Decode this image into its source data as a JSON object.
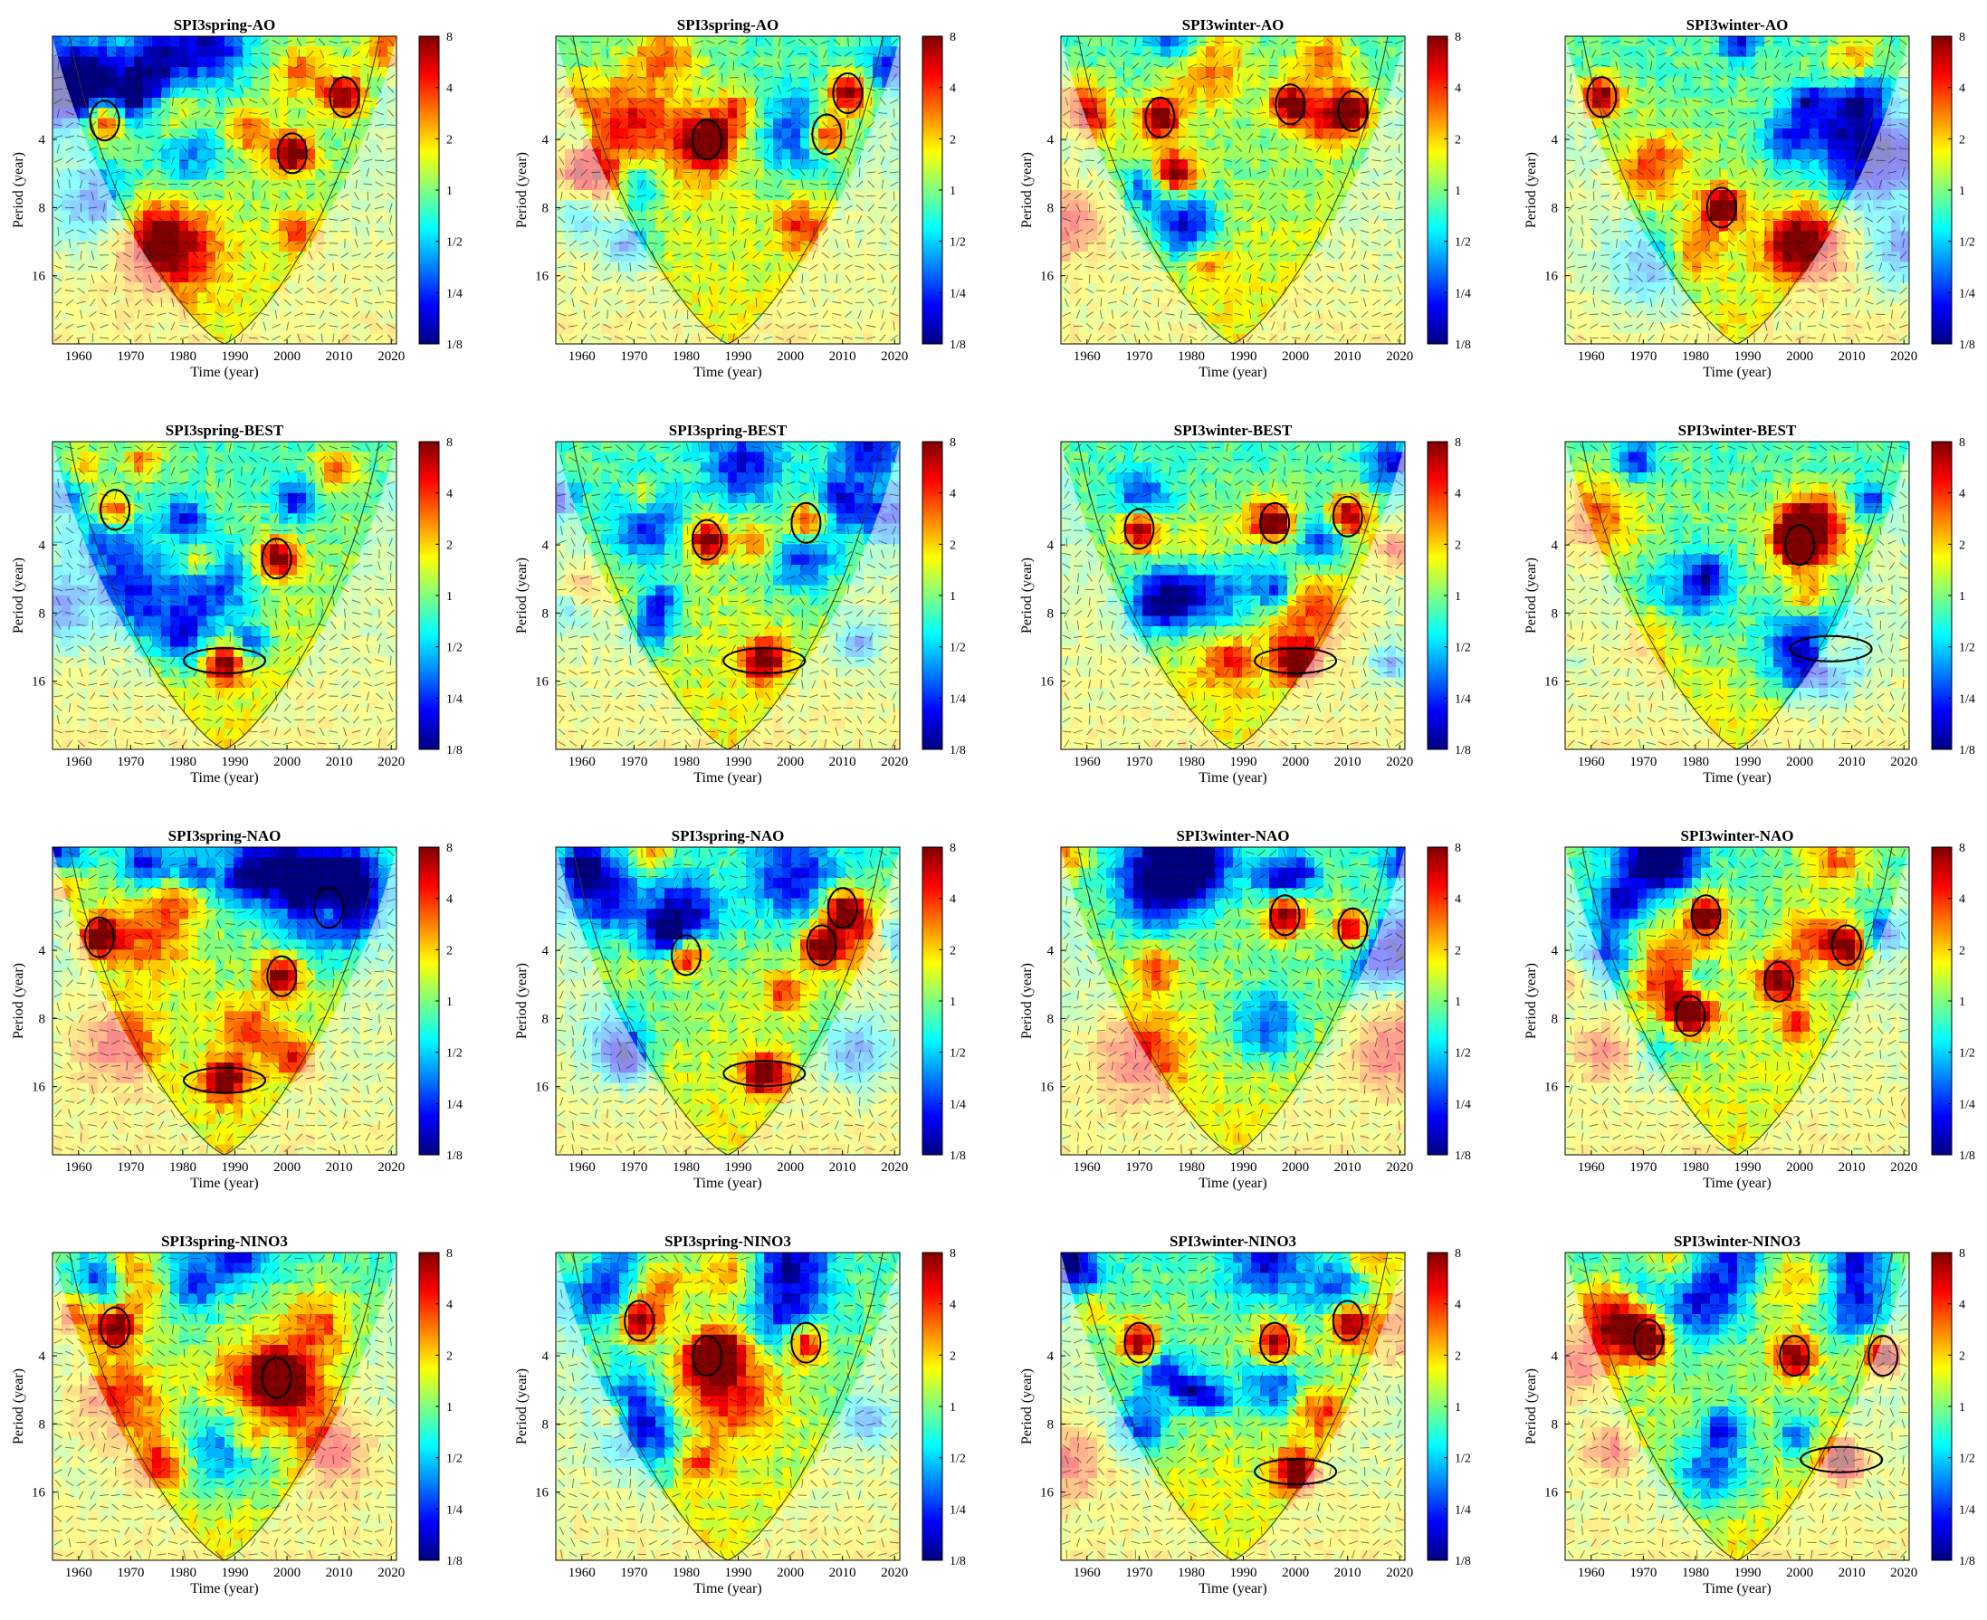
{
  "figure": {
    "layout": {
      "rows": 4,
      "cols": 4
    }
  },
  "colormap": [
    "#00007f",
    "#0000ff",
    "#0080ff",
    "#00ffff",
    "#80ff80",
    "#ffff00",
    "#ff8000",
    "#ff0000",
    "#7f0000"
  ],
  "chart_data": [
    {
      "type": "heatmap",
      "title": "SPI3spring-AO",
      "xlabel": "Time (year)",
      "ylabel": "Period (year)",
      "xlim": [
        1955,
        2021
      ],
      "x_ticks": [
        "1960",
        "1970",
        "1980",
        "1990",
        "2000",
        "2010",
        "2020"
      ],
      "y_ticks": [
        "4",
        "8",
        "16"
      ],
      "colorbar_ticks": [
        "8",
        "4",
        "2",
        "1",
        "1/2",
        "1/4",
        "1/8"
      ],
      "cone_of_influence": true,
      "significant_regions": [
        {
          "t": 1965,
          "period": 3.3
        },
        {
          "t": 2001,
          "period": 4.6
        },
        {
          "t": 2011,
          "period": 2.6
        }
      ],
      "seed": 11
    },
    {
      "type": "heatmap",
      "title": "SPI3spring-AO",
      "xlabel": "Time (year)",
      "ylabel": "Period (year)",
      "xlim": [
        1955,
        2021
      ],
      "x_ticks": [
        "1960",
        "1970",
        "1980",
        "1990",
        "2000",
        "2010",
        "2020"
      ],
      "y_ticks": [
        "4",
        "8",
        "16"
      ],
      "colorbar_ticks": [
        "8",
        "4",
        "2",
        "1",
        "1/2",
        "1/4",
        "1/8"
      ],
      "cone_of_influence": true,
      "significant_regions": [
        {
          "t": 1984,
          "period": 4
        },
        {
          "t": 2007,
          "period": 3.8
        },
        {
          "t": 2011,
          "period": 2.5
        }
      ],
      "seed": 23
    },
    {
      "type": "heatmap",
      "title": "SPI3winter-AO",
      "xlabel": "Time (year)",
      "ylabel": "Period (year)",
      "xlim": [
        1955,
        2021
      ],
      "x_ticks": [
        "1960",
        "1970",
        "1980",
        "1990",
        "2000",
        "2010",
        "2020"
      ],
      "y_ticks": [
        "4",
        "8",
        "16"
      ],
      "colorbar_ticks": [
        "8",
        "4",
        "2",
        "1",
        "1/2",
        "1/4",
        "1/8"
      ],
      "cone_of_influence": true,
      "significant_regions": [
        {
          "t": 1974,
          "period": 3.2
        },
        {
          "t": 1999,
          "period": 2.8
        },
        {
          "t": 2011,
          "period": 3
        }
      ],
      "seed": 37
    },
    {
      "type": "heatmap",
      "title": "SPI3winter-AO",
      "xlabel": "Time (year)",
      "ylabel": "Period (year)",
      "xlim": [
        1955,
        2021
      ],
      "x_ticks": [
        "1960",
        "1970",
        "1980",
        "1990",
        "2000",
        "2010",
        "2020"
      ],
      "y_ticks": [
        "4",
        "8",
        "16"
      ],
      "colorbar_ticks": [
        "8",
        "4",
        "2",
        "1",
        "1/2",
        "1/4",
        "1/8"
      ],
      "cone_of_influence": true,
      "significant_regions": [
        {
          "t": 1962,
          "period": 2.6
        },
        {
          "t": 1985,
          "period": 8
        }
      ],
      "seed": 41
    },
    {
      "type": "heatmap",
      "title": "SPI3spring-BEST",
      "xlabel": "Time (year)",
      "ylabel": "Period (year)",
      "xlim": [
        1955,
        2021
      ],
      "x_ticks": [
        "1960",
        "1970",
        "1980",
        "1990",
        "2000",
        "2010",
        "2020"
      ],
      "y_ticks": [
        "4",
        "8",
        "16"
      ],
      "colorbar_ticks": [
        "8",
        "4",
        "2",
        "1",
        "1/2",
        "1/4",
        "1/8"
      ],
      "cone_of_influence": true,
      "significant_regions": [
        {
          "t": 1967,
          "period": 2.8
        },
        {
          "t": 1998,
          "period": 4.6
        },
        {
          "t": 1988,
          "period": 13
        }
      ],
      "seed": 53
    },
    {
      "type": "heatmap",
      "title": "SPI3spring-BEST",
      "xlabel": "Time (year)",
      "ylabel": "Period (year)",
      "xlim": [
        1955,
        2021
      ],
      "x_ticks": [
        "1960",
        "1970",
        "1980",
        "1990",
        "2000",
        "2010",
        "2020"
      ],
      "y_ticks": [
        "4",
        "8",
        "16"
      ],
      "colorbar_ticks": [
        "8",
        "4",
        "2",
        "1",
        "1/2",
        "1/4",
        "1/8"
      ],
      "cone_of_influence": true,
      "significant_regions": [
        {
          "t": 1984,
          "period": 3.8
        },
        {
          "t": 2003,
          "period": 3.2
        },
        {
          "t": 1995,
          "period": 13
        }
      ],
      "seed": 67
    },
    {
      "type": "heatmap",
      "title": "SPI3winter-BEST",
      "xlabel": "Time (year)",
      "ylabel": "Period (year)",
      "xlim": [
        1955,
        2021
      ],
      "x_ticks": [
        "1960",
        "1970",
        "1980",
        "1990",
        "2000",
        "2010",
        "2020"
      ],
      "y_ticks": [
        "4",
        "8",
        "16"
      ],
      "colorbar_ticks": [
        "8",
        "4",
        "2",
        "1",
        "1/2",
        "1/4",
        "1/8"
      ],
      "cone_of_influence": true,
      "significant_regions": [
        {
          "t": 1970,
          "period": 3.4
        },
        {
          "t": 1996,
          "period": 3.2
        },
        {
          "t": 2010,
          "period": 3
        },
        {
          "t": 2000,
          "period": 13
        }
      ],
      "seed": 71
    },
    {
      "type": "heatmap",
      "title": "SPI3winter-BEST",
      "xlabel": "Time (year)",
      "ylabel": "Period (year)",
      "xlim": [
        1955,
        2021
      ],
      "x_ticks": [
        "1960",
        "1970",
        "1980",
        "1990",
        "2000",
        "2010",
        "2020"
      ],
      "y_ticks": [
        "4",
        "8",
        "16"
      ],
      "colorbar_ticks": [
        "8",
        "4",
        "2",
        "1",
        "1/2",
        "1/4",
        "1/8"
      ],
      "cone_of_influence": true,
      "significant_regions": [
        {
          "t": 2000,
          "period": 4
        },
        {
          "t": 2006,
          "period": 11.5
        }
      ],
      "seed": 83
    },
    {
      "type": "heatmap",
      "title": "SPI3spring-NAO",
      "xlabel": "Time (year)",
      "ylabel": "Period (year)",
      "xlim": [
        1955,
        2021
      ],
      "x_ticks": [
        "1960",
        "1970",
        "1980",
        "1990",
        "2000",
        "2010",
        "2020"
      ],
      "y_ticks": [
        "4",
        "8",
        "16"
      ],
      "colorbar_ticks": [
        "8",
        "4",
        "2",
        "1",
        "1/2",
        "1/4",
        "1/8"
      ],
      "cone_of_influence": true,
      "significant_regions": [
        {
          "t": 1964,
          "period": 3.5
        },
        {
          "t": 1999,
          "period": 5.2
        },
        {
          "t": 2008,
          "period": 2.6
        },
        {
          "t": 1988,
          "period": 15
        }
      ],
      "seed": 97
    },
    {
      "type": "heatmap",
      "title": "SPI3spring-NAO",
      "xlabel": "Time (year)",
      "ylabel": "Period (year)",
      "xlim": [
        1955,
        2021
      ],
      "x_ticks": [
        "1960",
        "1970",
        "1980",
        "1990",
        "2000",
        "2010",
        "2020"
      ],
      "y_ticks": [
        "4",
        "8",
        "16"
      ],
      "colorbar_ticks": [
        "8",
        "4",
        "2",
        "1",
        "1/2",
        "1/4",
        "1/8"
      ],
      "cone_of_influence": true,
      "significant_regions": [
        {
          "t": 1980,
          "period": 4.2
        },
        {
          "t": 2006,
          "period": 3.8
        },
        {
          "t": 2010,
          "period": 2.6
        },
        {
          "t": 1995,
          "period": 14
        }
      ],
      "seed": 101
    },
    {
      "type": "heatmap",
      "title": "SPI3winter-NAO",
      "xlabel": "Time (year)",
      "ylabel": "Period (year)",
      "xlim": [
        1955,
        2021
      ],
      "x_ticks": [
        "1960",
        "1970",
        "1980",
        "1990",
        "2000",
        "2010",
        "2020"
      ],
      "y_ticks": [
        "4",
        "8",
        "16"
      ],
      "colorbar_ticks": [
        "8",
        "4",
        "2",
        "1",
        "1/2",
        "1/4",
        "1/8"
      ],
      "cone_of_influence": true,
      "significant_regions": [
        {
          "t": 1998,
          "period": 2.8
        },
        {
          "t": 2011,
          "period": 3.2
        }
      ],
      "seed": 113
    },
    {
      "type": "heatmap",
      "title": "SPI3winter-NAO",
      "xlabel": "Time (year)",
      "ylabel": "Period (year)",
      "xlim": [
        1955,
        2021
      ],
      "x_ticks": [
        "1960",
        "1970",
        "1980",
        "1990",
        "2000",
        "2010",
        "2020"
      ],
      "y_ticks": [
        "4",
        "8",
        "16"
      ],
      "colorbar_ticks": [
        "8",
        "4",
        "2",
        "1",
        "1/2",
        "1/4",
        "1/8"
      ],
      "cone_of_influence": true,
      "significant_regions": [
        {
          "t": 1982,
          "period": 2.8
        },
        {
          "t": 1979,
          "period": 7.8
        },
        {
          "t": 1996,
          "period": 5.5
        },
        {
          "t": 2009,
          "period": 3.8
        }
      ],
      "seed": 127
    },
    {
      "type": "heatmap",
      "title": "SPI3spring-NINO3",
      "xlabel": "Time (year)",
      "ylabel": "Period (year)",
      "xlim": [
        1955,
        2021
      ],
      "x_ticks": [
        "1960",
        "1970",
        "1980",
        "1990",
        "2000",
        "2010",
        "2020"
      ],
      "y_ticks": [
        "4",
        "8",
        "16"
      ],
      "colorbar_ticks": [
        "8",
        "4",
        "2",
        "1",
        "1/2",
        "1/4",
        "1/8"
      ],
      "cone_of_influence": true,
      "significant_regions": [
        {
          "t": 1967,
          "period": 3
        },
        {
          "t": 1998,
          "period": 5
        }
      ],
      "seed": 131
    },
    {
      "type": "heatmap",
      "title": "SPI3spring-NINO3",
      "xlabel": "Time (year)",
      "ylabel": "Period (year)",
      "xlim": [
        1955,
        2021
      ],
      "x_ticks": [
        "1960",
        "1970",
        "1980",
        "1990",
        "2000",
        "2010",
        "2020"
      ],
      "y_ticks": [
        "4",
        "8",
        "16"
      ],
      "colorbar_ticks": [
        "8",
        "4",
        "2",
        "1",
        "1/2",
        "1/4",
        "1/8"
      ],
      "cone_of_influence": true,
      "significant_regions": [
        {
          "t": 1971,
          "period": 2.8
        },
        {
          "t": 1984,
          "period": 4
        },
        {
          "t": 2003,
          "period": 3.5
        }
      ],
      "seed": 149
    },
    {
      "type": "heatmap",
      "title": "SPI3winter-NINO3",
      "xlabel": "Time (year)",
      "ylabel": "Period (year)",
      "xlim": [
        1955,
        2021
      ],
      "x_ticks": [
        "1960",
        "1970",
        "1980",
        "1990",
        "2000",
        "2010",
        "2020"
      ],
      "y_ticks": [
        "4",
        "8",
        "16"
      ],
      "colorbar_ticks": [
        "8",
        "4",
        "2",
        "1",
        "1/2",
        "1/4",
        "1/8"
      ],
      "cone_of_influence": true,
      "significant_regions": [
        {
          "t": 1970,
          "period": 3.5
        },
        {
          "t": 1996,
          "period": 3.5
        },
        {
          "t": 2010,
          "period": 2.8
        },
        {
          "t": 2000,
          "period": 13
        }
      ],
      "seed": 157
    },
    {
      "type": "heatmap",
      "title": "SPI3winter-NINO3",
      "xlabel": "Time (year)",
      "ylabel": "Period (year)",
      "xlim": [
        1955,
        2021
      ],
      "x_ticks": [
        "1960",
        "1970",
        "1980",
        "1990",
        "2000",
        "2010",
        "2020"
      ],
      "y_ticks": [
        "4",
        "8",
        "16"
      ],
      "colorbar_ticks": [
        "8",
        "4",
        "2",
        "1",
        "1/2",
        "1/4",
        "1/8"
      ],
      "cone_of_influence": true,
      "significant_regions": [
        {
          "t": 1971,
          "period": 3.4
        },
        {
          "t": 1999,
          "period": 4
        },
        {
          "t": 2016,
          "period": 4
        },
        {
          "t": 2008,
          "period": 11.5
        }
      ],
      "seed": 163
    }
  ]
}
